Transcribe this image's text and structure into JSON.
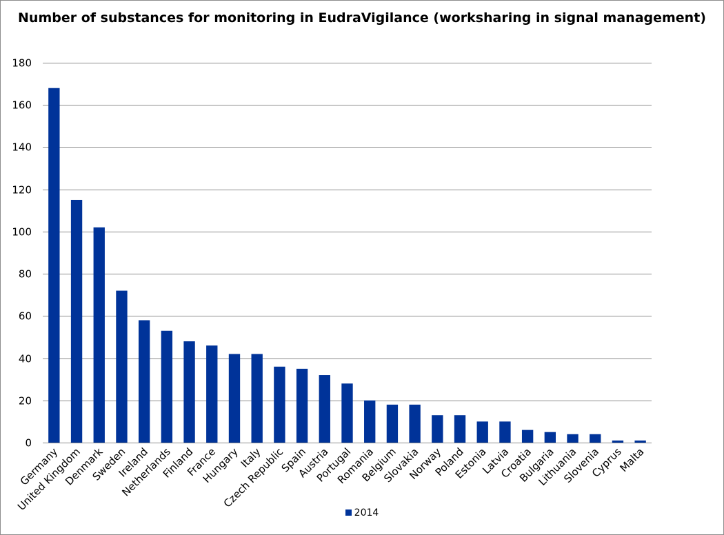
{
  "chart_data": {
    "type": "bar",
    "title": "Number of substances for monitoring in EudraVigilance (worksharing in signal management)",
    "xlabel": "",
    "ylabel": "",
    "ylim": [
      0,
      180
    ],
    "yticks": [
      0,
      20,
      40,
      60,
      80,
      100,
      120,
      140,
      160,
      180
    ],
    "grid": true,
    "legend_position": "bottom",
    "categories": [
      "Germany",
      "United Kingdom",
      "Denmark",
      "Sweden",
      "Ireland",
      "Netherlands",
      "Finland",
      "France",
      "Hungary",
      "Italy",
      "Czech Republic",
      "Spain",
      "Austria",
      "Portugal",
      "Romania",
      "Belgium",
      "Slovakia",
      "Norway",
      "Poland",
      "Estonia",
      "Latvia",
      "Croatia",
      "Bulgaria",
      "Lithuania",
      "Slovenia",
      "Cyprus",
      "Malta"
    ],
    "series": [
      {
        "name": "2014",
        "color": "#003399",
        "values": [
          168,
          115,
          102,
          72,
          58,
          53,
          48,
          46,
          42,
          42,
          36,
          35,
          32,
          28,
          20,
          18,
          18,
          13,
          13,
          10,
          10,
          6,
          5,
          4,
          4,
          1,
          1
        ]
      }
    ]
  }
}
